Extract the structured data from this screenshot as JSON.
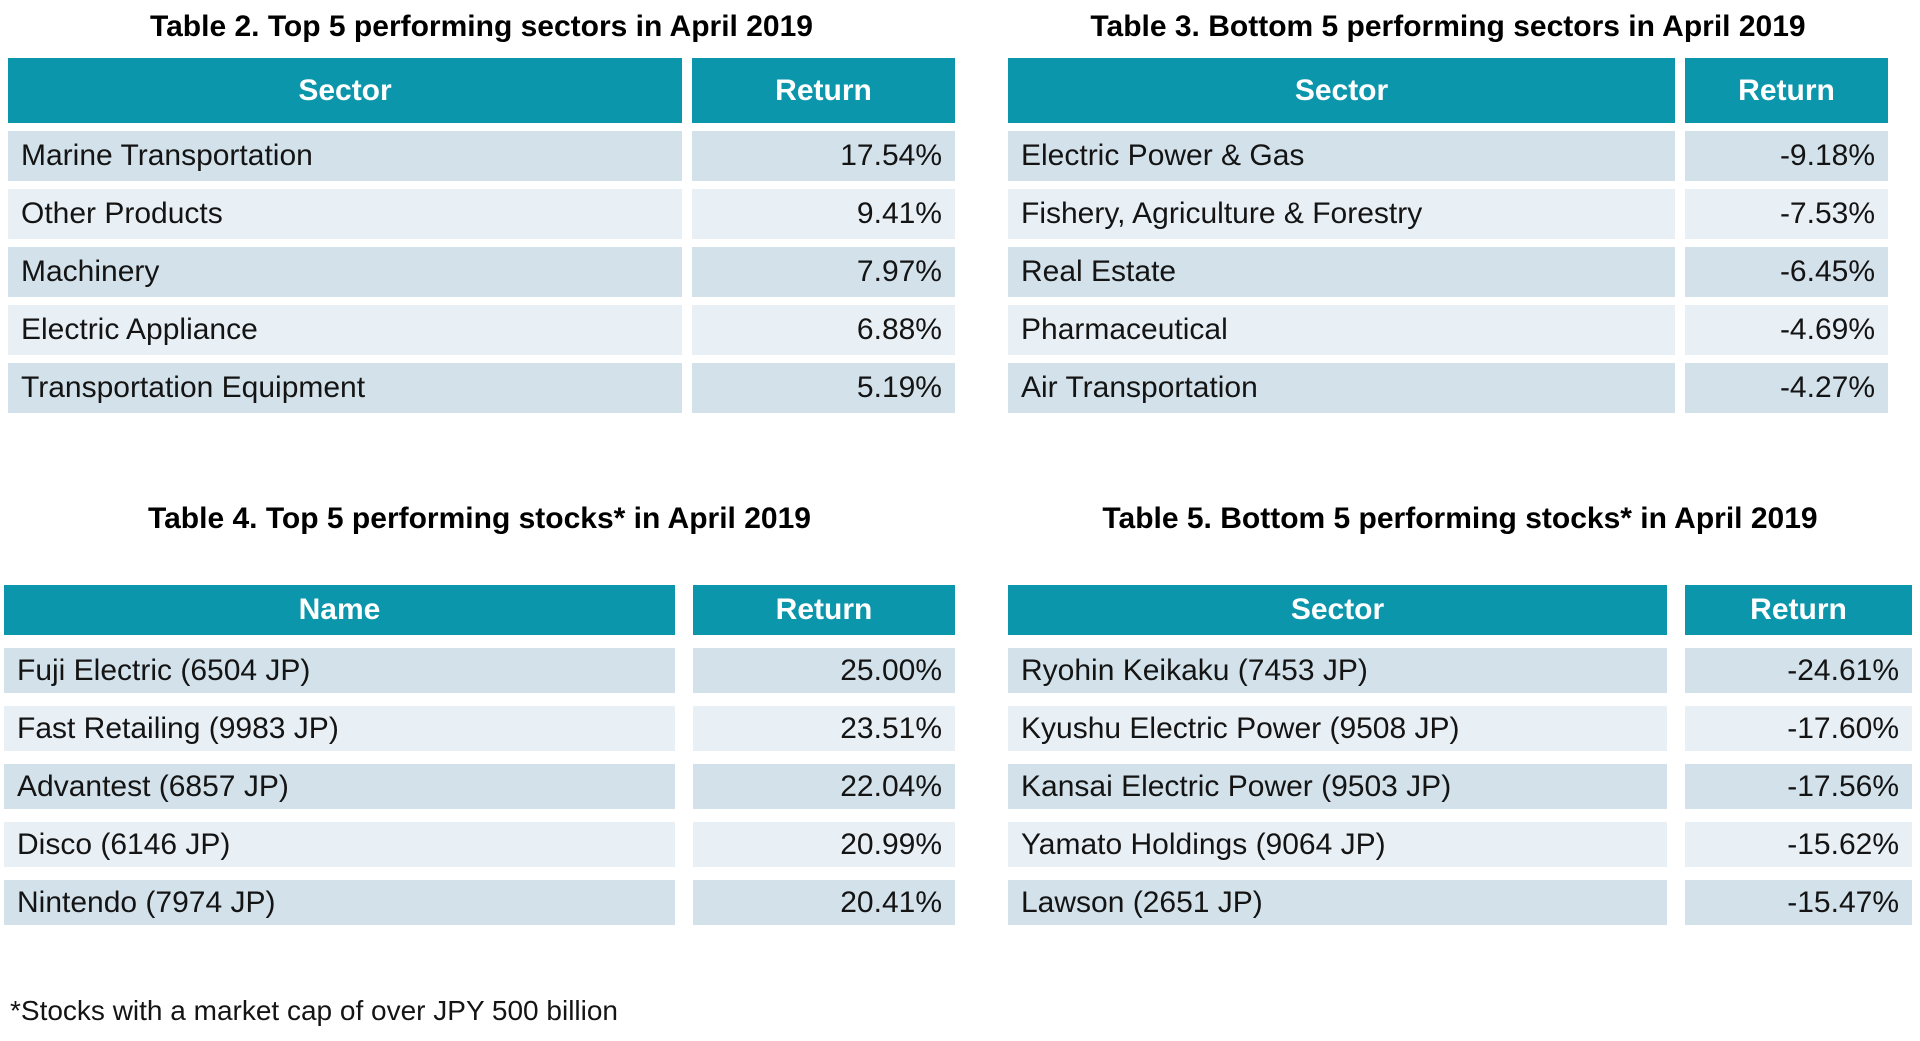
{
  "colors": {
    "header_bg": "#0b96ab",
    "header_text": "#ffffff",
    "row_odd_bg": "#d2e1ea",
    "row_even_bg": "#e8eff5",
    "text": "#141414"
  },
  "footnote": "*Stocks with a market cap of over JPY 500 billion",
  "tables": [
    {
      "id": "table2",
      "title": "Table 2. Top 5 performing sectors in April 2019",
      "columns": [
        "Sector",
        "Return"
      ],
      "rows": [
        [
          "Marine Transportation",
          "17.54%"
        ],
        [
          "Other Products",
          "9.41%"
        ],
        [
          "Machinery",
          "7.97%"
        ],
        [
          "Electric Appliance",
          "6.88%"
        ],
        [
          "Transportation Equipment",
          "5.19%"
        ]
      ]
    },
    {
      "id": "table3",
      "title": "Table 3. Bottom 5 performing sectors in April 2019",
      "columns": [
        "Sector",
        "Return"
      ],
      "rows": [
        [
          "Electric Power & Gas",
          "-9.18%"
        ],
        [
          "Fishery, Agriculture & Forestry",
          "-7.53%"
        ],
        [
          "Real Estate",
          "-6.45%"
        ],
        [
          "Pharmaceutical",
          "-4.69%"
        ],
        [
          "Air Transportation",
          "-4.27%"
        ]
      ]
    },
    {
      "id": "table4",
      "title": "Table 4. Top 5 performing stocks* in April 2019",
      "columns": [
        "Name",
        "Return"
      ],
      "rows": [
        [
          "Fuji Electric (6504 JP)",
          "25.00%"
        ],
        [
          "Fast Retailing (9983 JP)",
          "23.51%"
        ],
        [
          "Advantest (6857 JP)",
          "22.04%"
        ],
        [
          "Disco (6146 JP)",
          "20.99%"
        ],
        [
          "Nintendo (7974 JP)",
          "20.41%"
        ]
      ]
    },
    {
      "id": "table5",
      "title": "Table 5. Bottom 5 performing stocks* in April 2019",
      "columns": [
        "Sector",
        "Return"
      ],
      "rows": [
        [
          "Ryohin Keikaku (7453 JP)",
          "-24.61%"
        ],
        [
          "Kyushu Electric Power (9508 JP)",
          "-17.60%"
        ],
        [
          "Kansai Electric Power (9503 JP)",
          "-17.56%"
        ],
        [
          "Yamato Holdings (9064 JP)",
          "-15.62%"
        ],
        [
          "Lawson (2651 JP)",
          "-15.47%"
        ]
      ]
    }
  ],
  "chart_data": [
    {
      "type": "table",
      "title": "Table 2. Top 5 performing sectors in April 2019",
      "columns": [
        "Sector",
        "Return"
      ],
      "categories": [
        "Marine Transportation",
        "Other Products",
        "Machinery",
        "Electric Appliance",
        "Transportation Equipment"
      ],
      "values": [
        17.54,
        9.41,
        7.97,
        6.88,
        5.19
      ]
    },
    {
      "type": "table",
      "title": "Table 3. Bottom 5 performing sectors in April 2019",
      "columns": [
        "Sector",
        "Return"
      ],
      "categories": [
        "Electric Power & Gas",
        "Fishery, Agriculture & Forestry",
        "Real Estate",
        "Pharmaceutical",
        "Air Transportation"
      ],
      "values": [
        -9.18,
        -7.53,
        -6.45,
        -4.69,
        -4.27
      ]
    },
    {
      "type": "table",
      "title": "Table 4. Top 5 performing stocks* in April 2019",
      "columns": [
        "Name",
        "Return"
      ],
      "categories": [
        "Fuji Electric (6504 JP)",
        "Fast Retailing (9983 JP)",
        "Advantest (6857 JP)",
        "Disco (6146 JP)",
        "Nintendo (7974 JP)"
      ],
      "values": [
        25.0,
        23.51,
        22.04,
        20.99,
        20.41
      ]
    },
    {
      "type": "table",
      "title": "Table 5. Bottom 5 performing stocks* in April 2019",
      "columns": [
        "Sector",
        "Return"
      ],
      "categories": [
        "Ryohin Keikaku (7453 JP)",
        "Kyushu Electric Power (9508 JP)",
        "Kansai Electric Power (9503 JP)",
        "Yamato Holdings (9064 JP)",
        "Lawson (2651 JP)"
      ],
      "values": [
        -24.61,
        -17.6,
        -17.56,
        -15.62,
        -15.47
      ]
    }
  ]
}
